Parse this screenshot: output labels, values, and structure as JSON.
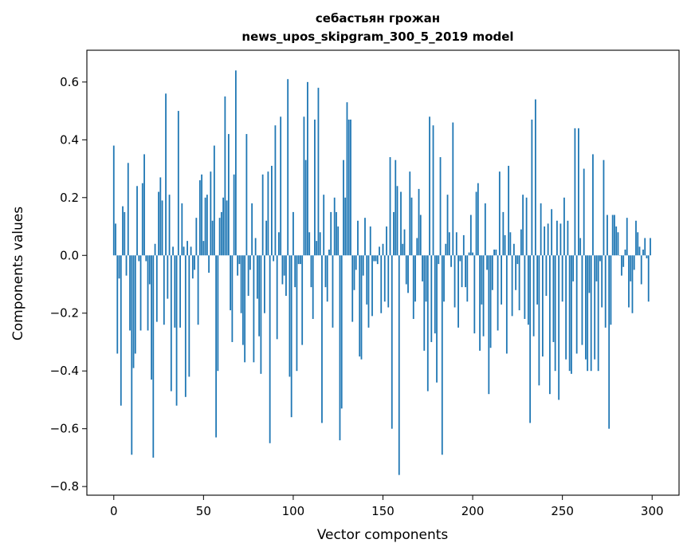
{
  "chart_data": {
    "type": "bar",
    "title_line1": "себастьян грожан",
    "title_line2": "news_upos_skipgram_300_5_2019 model",
    "xlabel": "Vector components",
    "ylabel": "Components values",
    "xlim": [
      -15,
      315
    ],
    "ylim": [
      -0.83,
      0.71
    ],
    "xticks": [
      0,
      50,
      100,
      150,
      200,
      250,
      300
    ],
    "yticks": [
      -0.8,
      -0.6,
      -0.4,
      -0.2,
      0.0,
      0.2,
      0.4,
      0.6
    ],
    "xtick_labels": [
      "0",
      "50",
      "100",
      "150",
      "200",
      "250",
      "300"
    ],
    "ytick_labels": [
      "−0.8",
      "−0.6",
      "−0.4",
      "−0.2",
      "0.0",
      "0.2",
      "0.4",
      "0.6"
    ],
    "bar_color": "#1f77b4",
    "grid": false,
    "values": [
      0.38,
      0.11,
      -0.34,
      -0.08,
      -0.52,
      0.17,
      0.15,
      -0.07,
      0.32,
      -0.26,
      -0.69,
      -0.39,
      -0.34,
      0.24,
      -0.02,
      -0.26,
      0.25,
      0.35,
      -0.02,
      -0.26,
      -0.1,
      -0.43,
      -0.7,
      0.04,
      -0.23,
      0.22,
      0.27,
      0.19,
      -0.24,
      0.56,
      -0.15,
      0.21,
      -0.47,
      0.03,
      -0.25,
      -0.52,
      0.5,
      -0.25,
      0.18,
      0.03,
      -0.49,
      0.05,
      -0.42,
      0.03,
      -0.08,
      -0.05,
      0.13,
      -0.24,
      0.26,
      0.28,
      0.05,
      0.2,
      0.21,
      -0.06,
      0.29,
      0.12,
      0.38,
      -0.63,
      -0.4,
      0.13,
      0.15,
      0.2,
      0.55,
      0.19,
      0.42,
      -0.19,
      -0.3,
      0.28,
      0.64,
      -0.07,
      -0.03,
      -0.2,
      -0.31,
      -0.37,
      0.42,
      -0.14,
      -0.05,
      0.18,
      -0.37,
      0.06,
      -0.15,
      -0.28,
      -0.41,
      0.28,
      -0.2,
      0.12,
      0.29,
      -0.65,
      0.31,
      -0.02,
      0.45,
      -0.29,
      0.08,
      0.48,
      -0.1,
      -0.07,
      -0.14,
      0.61,
      -0.42,
      -0.56,
      0.15,
      -0.11,
      -0.4,
      -0.03,
      -0.03,
      -0.31,
      0.48,
      0.33,
      0.6,
      0.08,
      -0.11,
      -0.22,
      0.47,
      0.05,
      0.58,
      0.08,
      -0.58,
      0.21,
      -0.11,
      -0.16,
      0.02,
      0.15,
      -0.25,
      0.2,
      0.15,
      0.1,
      -0.64,
      -0.53,
      0.33,
      0.2,
      0.53,
      0.47,
      0.47,
      -0.23,
      -0.12,
      -0.05,
      0.12,
      -0.35,
      -0.36,
      -0.07,
      0.13,
      -0.17,
      -0.25,
      0.1,
      -0.21,
      -0.02,
      -0.02,
      -0.03,
      0.03,
      -0.2,
      0.04,
      -0.16,
      0.1,
      -0.18,
      0.34,
      -0.6,
      0.15,
      0.33,
      0.24,
      -0.76,
      0.22,
      0.04,
      0.09,
      -0.1,
      -0.13,
      0.29,
      0.2,
      -0.22,
      -0.16,
      0.06,
      0.23,
      0.14,
      -0.09,
      -0.33,
      -0.16,
      -0.47,
      0.48,
      -0.3,
      0.45,
      -0.27,
      -0.44,
      -0.03,
      0.34,
      -0.69,
      -0.16,
      0.04,
      0.21,
      0.08,
      -0.04,
      0.46,
      -0.18,
      0.08,
      -0.25,
      -0.02,
      -0.11,
      0.07,
      -0.11,
      -0.16,
      0.01,
      0.14,
      0.01,
      -0.27,
      0.22,
      0.25,
      -0.33,
      -0.17,
      -0.28,
      0.18,
      -0.05,
      -0.48,
      -0.32,
      -0.12,
      0.02,
      0.02,
      -0.26,
      0.29,
      -0.17,
      0.15,
      0.07,
      -0.34,
      0.31,
      0.08,
      -0.21,
      0.04,
      -0.12,
      -0.03,
      -0.19,
      0.09,
      0.21,
      -0.22,
      0.2,
      -0.24,
      -0.58,
      0.47,
      -0.28,
      0.54,
      -0.17,
      -0.45,
      0.18,
      -0.35,
      0.1,
      -0.14,
      0.11,
      -0.48,
      0.16,
      -0.3,
      -0.4,
      0.12,
      -0.5,
      0.11,
      -0.16,
      0.2,
      -0.36,
      0.12,
      -0.4,
      -0.41,
      -0.09,
      0.44,
      -0.34,
      0.44,
      0.06,
      -0.31,
      0.3,
      -0.36,
      -0.4,
      -0.13,
      -0.4,
      0.35,
      -0.36,
      -0.09,
      -0.4,
      -0.02,
      -0.18,
      0.33,
      -0.25,
      0.14,
      -0.6,
      -0.24,
      0.14,
      0.14,
      0.1,
      0.08,
      0.0,
      -0.07,
      -0.04,
      0.02,
      0.13,
      -0.18,
      -0.09,
      -0.2,
      -0.05,
      0.12,
      0.08,
      0.03,
      -0.1,
      0.02,
      0.06,
      -0.01,
      -0.16,
      0.06
    ]
  }
}
